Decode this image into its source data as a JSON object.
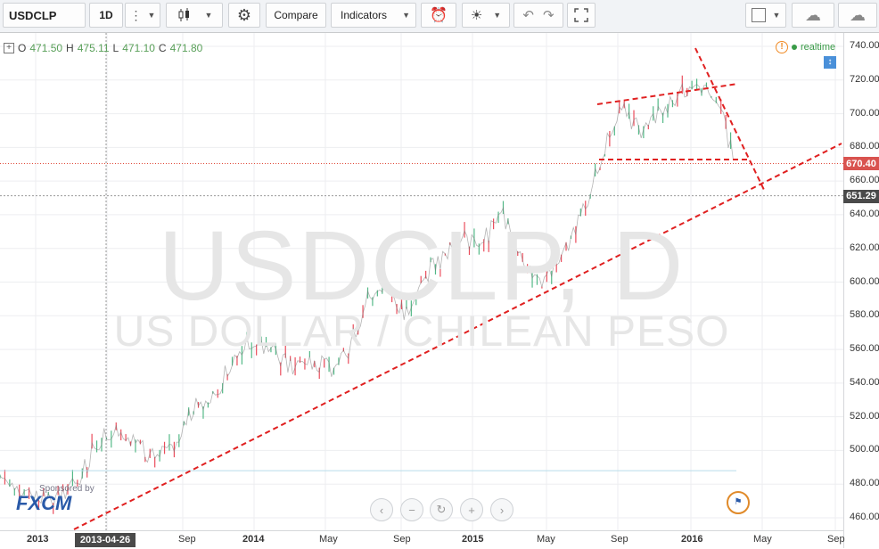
{
  "toolbar": {
    "symbol": "USDCLP",
    "interval": "1D",
    "compare_label": "Compare",
    "indicators_label": "Indicators"
  },
  "ohlc": {
    "o_label": "O",
    "o": "471.50",
    "h_label": "H",
    "h": "475.11",
    "l_label": "L",
    "l": "471.10",
    "c_label": "C",
    "c": "471.80"
  },
  "status": {
    "realtime": "realtime"
  },
  "watermark": {
    "symbol": "USDCLP, D",
    "description": "US DOLLAR / CHILEAN PESO"
  },
  "sponsor": {
    "text": "Sponsored by",
    "brand": "FXCM"
  },
  "price_axis": {
    "ticks": [
      "740.00",
      "720.00",
      "700.00",
      "680.00",
      "660.00",
      "640.00",
      "620.00",
      "600.00",
      "580.00",
      "560.00",
      "540.00",
      "520.00",
      "500.00",
      "480.00",
      "460.00"
    ],
    "last_price": "670.40",
    "crosshair_price": "651.29",
    "last_price_color": "#d9534f",
    "crosshair_color": "#4a4a4a"
  },
  "time_axis": {
    "labels": [
      "2013",
      "Sep",
      "2014",
      "May",
      "Sep",
      "2015",
      "May",
      "Sep",
      "2016",
      "May",
      "Sep"
    ],
    "cursor_date": "2013-04-26"
  },
  "navigation": {
    "left": "‹",
    "zoom_out": "−",
    "reset": "↻",
    "zoom_in": "+",
    "right": "›"
  },
  "colors": {
    "up": "#53b987",
    "down": "#eb4d5c",
    "trendline": "#e02020",
    "accent": "#2a5aa8"
  },
  "chart_data": {
    "type": "line",
    "title": "USDCLP, D",
    "subtitle": "US DOLLAR / CHILEAN PESO",
    "x": [
      "2012-10",
      "2012-12",
      "2013-02",
      "2013-04",
      "2013-05",
      "2013-06",
      "2013-07",
      "2013-08",
      "2013-09",
      "2013-10",
      "2013-11",
      "2013-12",
      "2014-01",
      "2014-02",
      "2014-03",
      "2014-04",
      "2014-05",
      "2014-06",
      "2014-07",
      "2014-08",
      "2014-09",
      "2014-10",
      "2014-11",
      "2014-12",
      "2015-01",
      "2015-02",
      "2015-03",
      "2015-04",
      "2015-05",
      "2015-06",
      "2015-07",
      "2015-08",
      "2015-09",
      "2015-10",
      "2015-11",
      "2015-12",
      "2016-01",
      "2016-02",
      "2016-03"
    ],
    "series": [
      {
        "values": [
          485,
          478,
          472,
          471,
          480,
          505,
          515,
          505,
          495,
          500,
          525,
          530,
          555,
          565,
          560,
          550,
          555,
          548,
          560,
          590,
          600,
          580,
          605,
          615,
          625,
          625,
          640,
          615,
          600,
          610,
          640,
          670,
          705,
          690,
          700,
          710,
          720,
          710,
          670
        ]
      }
    ],
    "ylim": [
      452,
      746
    ],
    "horizontal_levels": [
      670.4,
      651.29,
      488
    ],
    "grid": true
  }
}
